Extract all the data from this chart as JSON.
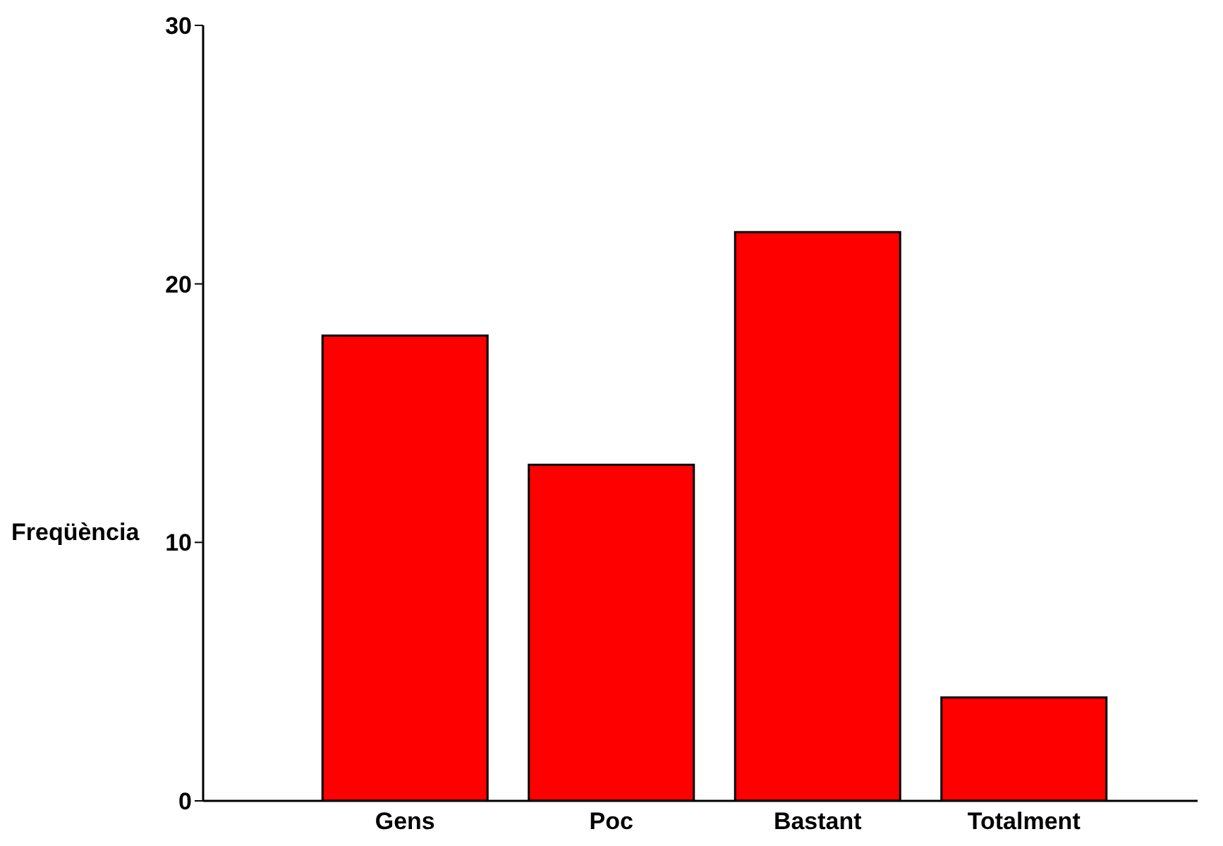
{
  "chart_data": {
    "type": "bar",
    "ylabel": "Freqüència",
    "categories": [
      "Gens",
      "Poc",
      "Bastant",
      "Totalment"
    ],
    "values": [
      18,
      13,
      22,
      4
    ],
    "color": "#ff0000",
    "ylim": [
      0,
      30
    ],
    "yticks": [
      0,
      10,
      20,
      30
    ],
    "grid": false,
    "legend": false
  }
}
